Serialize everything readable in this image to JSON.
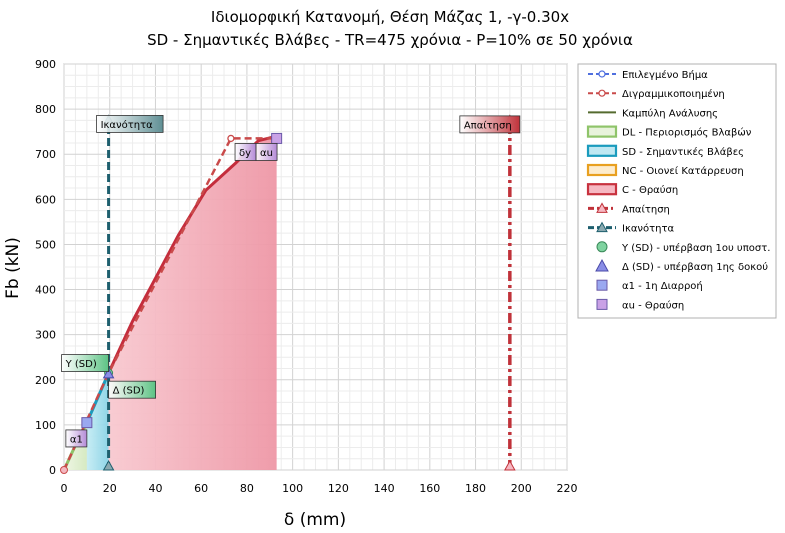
{
  "chart_data": {
    "type": "area",
    "title": "Ιδιομορφική Κατανομή, Θέση Μάζας 1, -γ-0.30x",
    "subtitle": "SD - Σημαντικές Βλάβες - TR=475 χρόνια - P=10% σε 50 χρόνια",
    "xlabel": "δ (mm)",
    "ylabel": "Fb (kN)",
    "xlim": [
      0,
      220
    ],
    "ylim": [
      0,
      900
    ],
    "xticks": [
      "0",
      "20",
      "40",
      "60",
      "80",
      "100",
      "120",
      "140",
      "160",
      "180",
      "200",
      "220"
    ],
    "yticks": [
      "0",
      "100",
      "200",
      "300",
      "400",
      "500",
      "600",
      "700",
      "800",
      "900"
    ],
    "grid": true,
    "legend_position": "right",
    "regions": [
      {
        "name": "DL - Περιορισμός Βλαβών",
        "x": [
          0,
          10
        ],
        "fill": "#dcebc9",
        "stroke": "#8fc46a"
      },
      {
        "name": "SD - Σημαντικές Βλάβες",
        "x": [
          10,
          19.5
        ],
        "fill": "#a9e0ec",
        "stroke": "#1a9bbd"
      },
      {
        "name": "NC - Οιονεί Κατάρρευση",
        "x": [
          19.5,
          19.5
        ],
        "fill": "#fde3b0",
        "stroke": "#e8a020"
      },
      {
        "name": "C - Θραύση",
        "x": [
          19.5,
          93
        ],
        "fill": "#f6aab6",
        "stroke": "#c8323f"
      }
    ],
    "series": [
      {
        "name": "Επιλεγμένο Βήμα",
        "x": [],
        "y": [],
        "color": "#4f6fdf"
      },
      {
        "name": "Διγραμμικοποιημένη",
        "x": [
          0,
          19.5,
          73,
          93
        ],
        "y": [
          0,
          215,
          735,
          735
        ],
        "color": "#c94a4a"
      },
      {
        "name": "Καμπύλη Ανάλυσης",
        "x": [
          0,
          5,
          10,
          19.5,
          30,
          40,
          50,
          62,
          75,
          85,
          93
        ],
        "y": [
          0,
          55,
          105,
          215,
          330,
          425,
          520,
          620,
          680,
          730,
          740
        ],
        "color": "#556b2f"
      },
      {
        "name": "Απαίτηση",
        "x": [
          195,
          195
        ],
        "y": [
          0,
          775
        ],
        "color": "#c0323a"
      },
      {
        "name": "Ικανότητα",
        "x": [
          19.5,
          19.5
        ],
        "y": [
          0,
          775
        ],
        "color": "#1e5f6e"
      }
    ],
    "main_curve": {
      "x": [
        0,
        5,
        10,
        19.5,
        30,
        40,
        50,
        62,
        75,
        85,
        93
      ],
      "y": [
        0,
        55,
        105,
        215,
        330,
        425,
        520,
        620,
        680,
        730,
        740
      ],
      "color": "#c42d3c"
    },
    "points": [
      {
        "name": "Υ (SD) - υπέρβαση 1ου υποστ.",
        "x": 19.5,
        "y": 215,
        "shape": "circle",
        "color": "#7fd3a0"
      },
      {
        "name": "Δ (SD) - υπέρβαση 1ης δοκού",
        "x": 19.5,
        "y": 213,
        "shape": "triangle",
        "color": "#8a8ee6"
      },
      {
        "name": "α1 - 1η Διαρροή",
        "x": 10,
        "y": 105,
        "shape": "square",
        "color": "#9aa8f0"
      },
      {
        "name": "αu - Θραύση",
        "x": 93,
        "y": 735,
        "shape": "square",
        "color": "#c9a1e6"
      }
    ],
    "legend": [
      {
        "label": "Επιλεγμένο Βήμα",
        "kind": "dash-circle",
        "color": "#4f6fdf"
      },
      {
        "label": "Διγραμμικοποιημένη",
        "kind": "dash-circle",
        "color": "#c94a4a"
      },
      {
        "label": "Καμπύλη Ανάλυσης",
        "kind": "line",
        "color": "#556b2f"
      },
      {
        "label": "DL - Περιορισμός Βλαβών",
        "kind": "box",
        "color": "#8fc46a",
        "fill": "#e8f3dc"
      },
      {
        "label": "SD - Σημαντικές Βλάβες",
        "kind": "box",
        "color": "#1a9bbd",
        "fill": "#bfe8f2"
      },
      {
        "label": "NC - Οιονεί Κατάρρευση",
        "kind": "box",
        "color": "#e8a020",
        "fill": "#fdeccd"
      },
      {
        "label": "C - Θραύση",
        "kind": "box",
        "color": "#c8323f",
        "fill": "#f6b8c2"
      },
      {
        "label": "Απαίτηση",
        "kind": "dashdot-triangle",
        "color": "#c0323a"
      },
      {
        "label": "Ικανότητα",
        "kind": "dash-triangle",
        "color": "#1e5f6e"
      },
      {
        "label": "Υ (SD) - υπέρβαση 1ου υποστ.",
        "kind": "circle",
        "color": "#7fd3a0"
      },
      {
        "label": "Δ (SD) - υπέρβαση 1ης δοκού",
        "kind": "triangle",
        "color": "#8a8ee6"
      },
      {
        "label": "α1 - 1η Διαρροή",
        "kind": "square",
        "color": "#9aa8f0"
      },
      {
        "label": "αu - Θραύση",
        "kind": "square",
        "color": "#c9a1e6"
      }
    ],
    "annotations": [
      {
        "text": "Ικανότητα",
        "x": 19.5,
        "y": 745,
        "fill": "#5f8f94",
        "anchor": "left"
      },
      {
        "text": "Απαίτηση",
        "x": 195,
        "y": 775,
        "fill": "#c0323a",
        "anchor": "right"
      },
      {
        "text": "Υ (SD)",
        "x": 19.5,
        "y": 237,
        "fill": "#5cc384",
        "anchor": "right"
      },
      {
        "text": "Δ (SD)",
        "x": 19.5,
        "y": 178,
        "fill": "#7273cf",
        "anchor": "left"
      },
      {
        "text": "α1",
        "x": 10,
        "y": 70,
        "fill": "#b48ad8",
        "anchor": "right"
      },
      {
        "text": "δy",
        "x": 84,
        "y": 705,
        "fill": "#b48ad8",
        "anchor": "right"
      },
      {
        "text": "αu",
        "x": 84,
        "y": 705,
        "fill": "#b48ad8",
        "anchor": "left"
      }
    ]
  }
}
